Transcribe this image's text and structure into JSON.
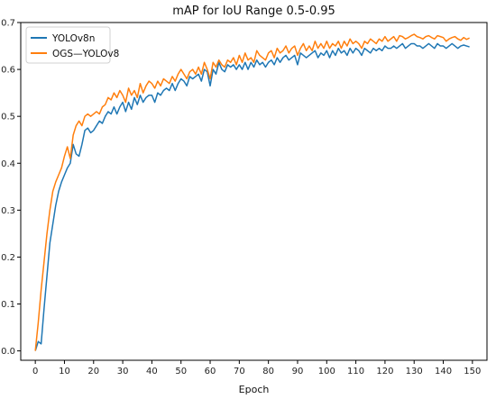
{
  "chart_data": {
    "type": "line",
    "title": "mAP for IoU Range 0.5-0.95",
    "xlabel": "Epoch",
    "ylabel": "",
    "xlim": [
      -5,
      155
    ],
    "ylim": [
      -0.02,
      0.7
    ],
    "xticks": [
      0,
      10,
      20,
      30,
      40,
      50,
      60,
      70,
      80,
      90,
      100,
      110,
      120,
      130,
      140,
      150
    ],
    "yticks": [
      0.0,
      0.1,
      0.2,
      0.3,
      0.4,
      0.5,
      0.6,
      0.7
    ],
    "ytick_labels": [
      "0.0",
      "0.1",
      "0.2",
      "0.3",
      "0.4",
      "0.5",
      "0.6",
      "0.7"
    ],
    "grid": false,
    "legend_position": "top-left",
    "series": [
      {
        "name": "YOLOv8n",
        "color": "#1f77b4",
        "x": [
          0,
          1,
          2,
          3,
          4,
          5,
          6,
          7,
          8,
          9,
          10,
          11,
          12,
          13,
          14,
          15,
          16,
          17,
          18,
          19,
          20,
          21,
          22,
          23,
          24,
          25,
          26,
          27,
          28,
          29,
          30,
          31,
          32,
          33,
          34,
          35,
          36,
          37,
          38,
          39,
          40,
          41,
          42,
          43,
          44,
          45,
          46,
          47,
          48,
          49,
          50,
          51,
          52,
          53,
          54,
          55,
          56,
          57,
          58,
          59,
          60,
          61,
          62,
          63,
          64,
          65,
          66,
          67,
          68,
          69,
          70,
          71,
          72,
          73,
          74,
          75,
          76,
          77,
          78,
          79,
          80,
          81,
          82,
          83,
          84,
          85,
          86,
          87,
          88,
          89,
          90,
          91,
          92,
          93,
          94,
          95,
          96,
          97,
          98,
          99,
          100,
          101,
          102,
          103,
          104,
          105,
          106,
          107,
          108,
          109,
          110,
          111,
          112,
          113,
          114,
          115,
          116,
          117,
          118,
          119,
          120,
          121,
          122,
          123,
          124,
          125,
          126,
          127,
          128,
          129,
          130,
          131,
          132,
          133,
          134,
          135,
          136,
          137,
          138,
          139,
          140,
          141,
          142,
          143,
          144,
          145,
          146,
          147,
          148,
          149
        ],
        "y": [
          0.0,
          0.02,
          0.015,
          0.09,
          0.16,
          0.23,
          0.27,
          0.31,
          0.34,
          0.36,
          0.375,
          0.39,
          0.4,
          0.44,
          0.42,
          0.415,
          0.44,
          0.47,
          0.475,
          0.465,
          0.47,
          0.48,
          0.49,
          0.485,
          0.5,
          0.51,
          0.505,
          0.52,
          0.505,
          0.52,
          0.53,
          0.51,
          0.53,
          0.515,
          0.54,
          0.525,
          0.545,
          0.53,
          0.54,
          0.545,
          0.545,
          0.53,
          0.55,
          0.545,
          0.555,
          0.56,
          0.555,
          0.57,
          0.555,
          0.57,
          0.58,
          0.575,
          0.565,
          0.585,
          0.58,
          0.585,
          0.59,
          0.575,
          0.6,
          0.595,
          0.565,
          0.6,
          0.59,
          0.615,
          0.6,
          0.595,
          0.61,
          0.605,
          0.61,
          0.6,
          0.61,
          0.6,
          0.615,
          0.6,
          0.615,
          0.605,
          0.62,
          0.61,
          0.615,
          0.605,
          0.615,
          0.62,
          0.61,
          0.625,
          0.615,
          0.625,
          0.63,
          0.62,
          0.625,
          0.63,
          0.61,
          0.635,
          0.63,
          0.625,
          0.63,
          0.635,
          0.64,
          0.625,
          0.635,
          0.63,
          0.64,
          0.625,
          0.64,
          0.63,
          0.645,
          0.635,
          0.64,
          0.63,
          0.645,
          0.635,
          0.645,
          0.64,
          0.63,
          0.645,
          0.64,
          0.635,
          0.645,
          0.64,
          0.645,
          0.64,
          0.65,
          0.645,
          0.645,
          0.65,
          0.645,
          0.65,
          0.655,
          0.645,
          0.65,
          0.655,
          0.655,
          0.65,
          0.65,
          0.645,
          0.65,
          0.655,
          0.65,
          0.645,
          0.655,
          0.65,
          0.65,
          0.645,
          0.65,
          0.655,
          0.65,
          0.645,
          0.65,
          0.652,
          0.65,
          0.648
        ]
      },
      {
        "name": "OGS—YOLOv8",
        "color": "#ff7f0e",
        "x": [
          0,
          1,
          2,
          3,
          4,
          5,
          6,
          7,
          8,
          9,
          10,
          11,
          12,
          13,
          14,
          15,
          16,
          17,
          18,
          19,
          20,
          21,
          22,
          23,
          24,
          25,
          26,
          27,
          28,
          29,
          30,
          31,
          32,
          33,
          34,
          35,
          36,
          37,
          38,
          39,
          40,
          41,
          42,
          43,
          44,
          45,
          46,
          47,
          48,
          49,
          50,
          51,
          52,
          53,
          54,
          55,
          56,
          57,
          58,
          59,
          60,
          61,
          62,
          63,
          64,
          65,
          66,
          67,
          68,
          69,
          70,
          71,
          72,
          73,
          74,
          75,
          76,
          77,
          78,
          79,
          80,
          81,
          82,
          83,
          84,
          85,
          86,
          87,
          88,
          89,
          90,
          91,
          92,
          93,
          94,
          95,
          96,
          97,
          98,
          99,
          100,
          101,
          102,
          103,
          104,
          105,
          106,
          107,
          108,
          109,
          110,
          111,
          112,
          113,
          114,
          115,
          116,
          117,
          118,
          119,
          120,
          121,
          122,
          123,
          124,
          125,
          126,
          127,
          128,
          129,
          130,
          131,
          132,
          133,
          134,
          135,
          136,
          137,
          138,
          139,
          140,
          141,
          142,
          143,
          144,
          145,
          146,
          147,
          148,
          149
        ],
        "y": [
          0.0,
          0.06,
          0.13,
          0.19,
          0.25,
          0.3,
          0.34,
          0.36,
          0.375,
          0.39,
          0.415,
          0.435,
          0.41,
          0.46,
          0.48,
          0.49,
          0.48,
          0.5,
          0.505,
          0.5,
          0.505,
          0.51,
          0.505,
          0.52,
          0.525,
          0.54,
          0.535,
          0.55,
          0.54,
          0.555,
          0.545,
          0.53,
          0.56,
          0.545,
          0.555,
          0.54,
          0.57,
          0.55,
          0.565,
          0.575,
          0.57,
          0.56,
          0.575,
          0.565,
          0.58,
          0.575,
          0.57,
          0.585,
          0.575,
          0.59,
          0.6,
          0.59,
          0.58,
          0.595,
          0.6,
          0.59,
          0.605,
          0.59,
          0.615,
          0.6,
          0.58,
          0.615,
          0.605,
          0.62,
          0.61,
          0.605,
          0.62,
          0.615,
          0.625,
          0.61,
          0.63,
          0.615,
          0.635,
          0.62,
          0.625,
          0.615,
          0.64,
          0.63,
          0.625,
          0.62,
          0.635,
          0.64,
          0.625,
          0.645,
          0.635,
          0.64,
          0.65,
          0.635,
          0.645,
          0.65,
          0.63,
          0.645,
          0.655,
          0.64,
          0.65,
          0.64,
          0.66,
          0.645,
          0.655,
          0.645,
          0.66,
          0.645,
          0.655,
          0.65,
          0.66,
          0.645,
          0.66,
          0.65,
          0.665,
          0.655,
          0.66,
          0.655,
          0.645,
          0.66,
          0.655,
          0.665,
          0.66,
          0.655,
          0.665,
          0.66,
          0.67,
          0.66,
          0.665,
          0.67,
          0.66,
          0.672,
          0.67,
          0.665,
          0.668,
          0.672,
          0.675,
          0.67,
          0.668,
          0.665,
          0.67,
          0.672,
          0.668,
          0.665,
          0.672,
          0.67,
          0.668,
          0.66,
          0.665,
          0.668,
          0.67,
          0.665,
          0.662,
          0.668,
          0.664,
          0.667
        ]
      }
    ]
  }
}
